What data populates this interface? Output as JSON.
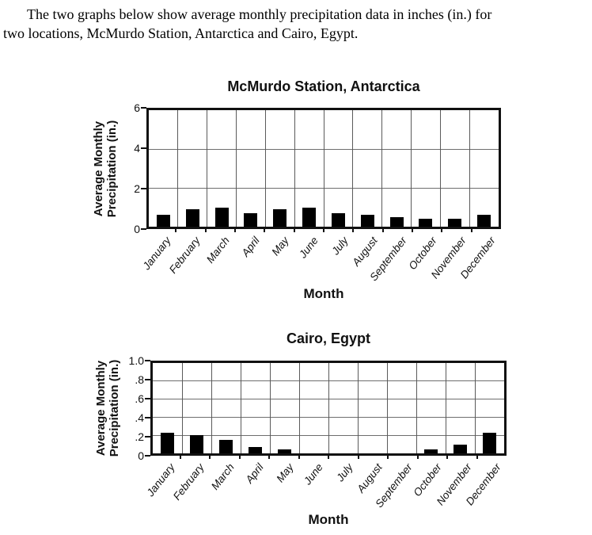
{
  "intro": {
    "lines": [
      "The two graphs below show average monthly precipitation data in inches (in.) for",
      "two locations, McMurdo Station, Antarctica and Cairo, Egypt."
    ]
  },
  "chart_data": [
    {
      "type": "bar",
      "title": "McMurdo Station, Antarctica",
      "xlabel": "Month",
      "ylabel": "Average Monthly Precipitation (in.)",
      "ylabel_lines": [
        "Average Monthly",
        "Precipitation (in.)"
      ],
      "categories": [
        "January",
        "February",
        "March",
        "April",
        "May",
        "June",
        "July",
        "August",
        "September",
        "October",
        "November",
        "December"
      ],
      "values": [
        0.6,
        0.9,
        1.0,
        0.7,
        0.9,
        1.0,
        0.7,
        0.6,
        0.5,
        0.4,
        0.4,
        0.6
      ],
      "ylim": [
        0,
        6
      ],
      "yticks": [
        0,
        2,
        4,
        6
      ],
      "ytick_labels": [
        "0",
        "2",
        "4",
        "6"
      ],
      "grid": true,
      "legend": false,
      "bar_color": "#000000"
    },
    {
      "type": "bar",
      "title": "Cairo, Egypt",
      "xlabel": "Month",
      "ylabel": "Average Monthly Precipitation (in.)",
      "ylabel_lines": [
        "Average Monthly",
        "Precipitation (in.)"
      ],
      "categories": [
        "January",
        "February",
        "March",
        "April",
        "May",
        "June",
        "July",
        "August",
        "September",
        "October",
        "November",
        "December"
      ],
      "values": [
        0.23,
        0.2,
        0.15,
        0.07,
        0.04,
        0,
        0,
        0,
        0,
        0.04,
        0.1,
        0.23
      ],
      "ylim": [
        0,
        1.0
      ],
      "yticks": [
        0,
        0.2,
        0.4,
        0.6,
        0.8,
        1.0
      ],
      "ytick_labels": [
        "0",
        ".2",
        ".4",
        ".6",
        ".8",
        "1.0"
      ],
      "grid": true,
      "legend": false,
      "bar_color": "#000000"
    }
  ]
}
